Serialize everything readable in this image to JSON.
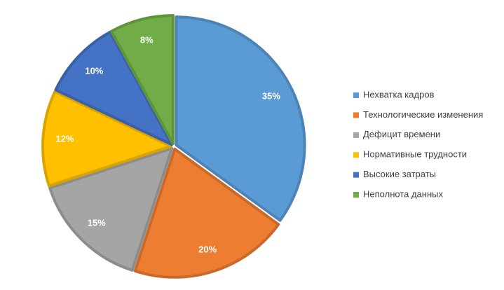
{
  "chart_data": {
    "type": "pie",
    "categories": [
      "Нехватка кадров",
      "Технологические изменения",
      "Дефицит времени",
      "Нормативные трудности",
      "Высокие затраты",
      "Неполнота данных"
    ],
    "values": [
      35,
      20,
      15,
      12,
      10,
      8
    ],
    "value_labels": [
      "35%",
      "20%",
      "15%",
      "12%",
      "10%",
      "8%"
    ],
    "colors": [
      "#5b9bd5",
      "#ed7d31",
      "#a5a5a5",
      "#ffc000",
      "#4472c4",
      "#70ad47"
    ],
    "legend": "right"
  }
}
